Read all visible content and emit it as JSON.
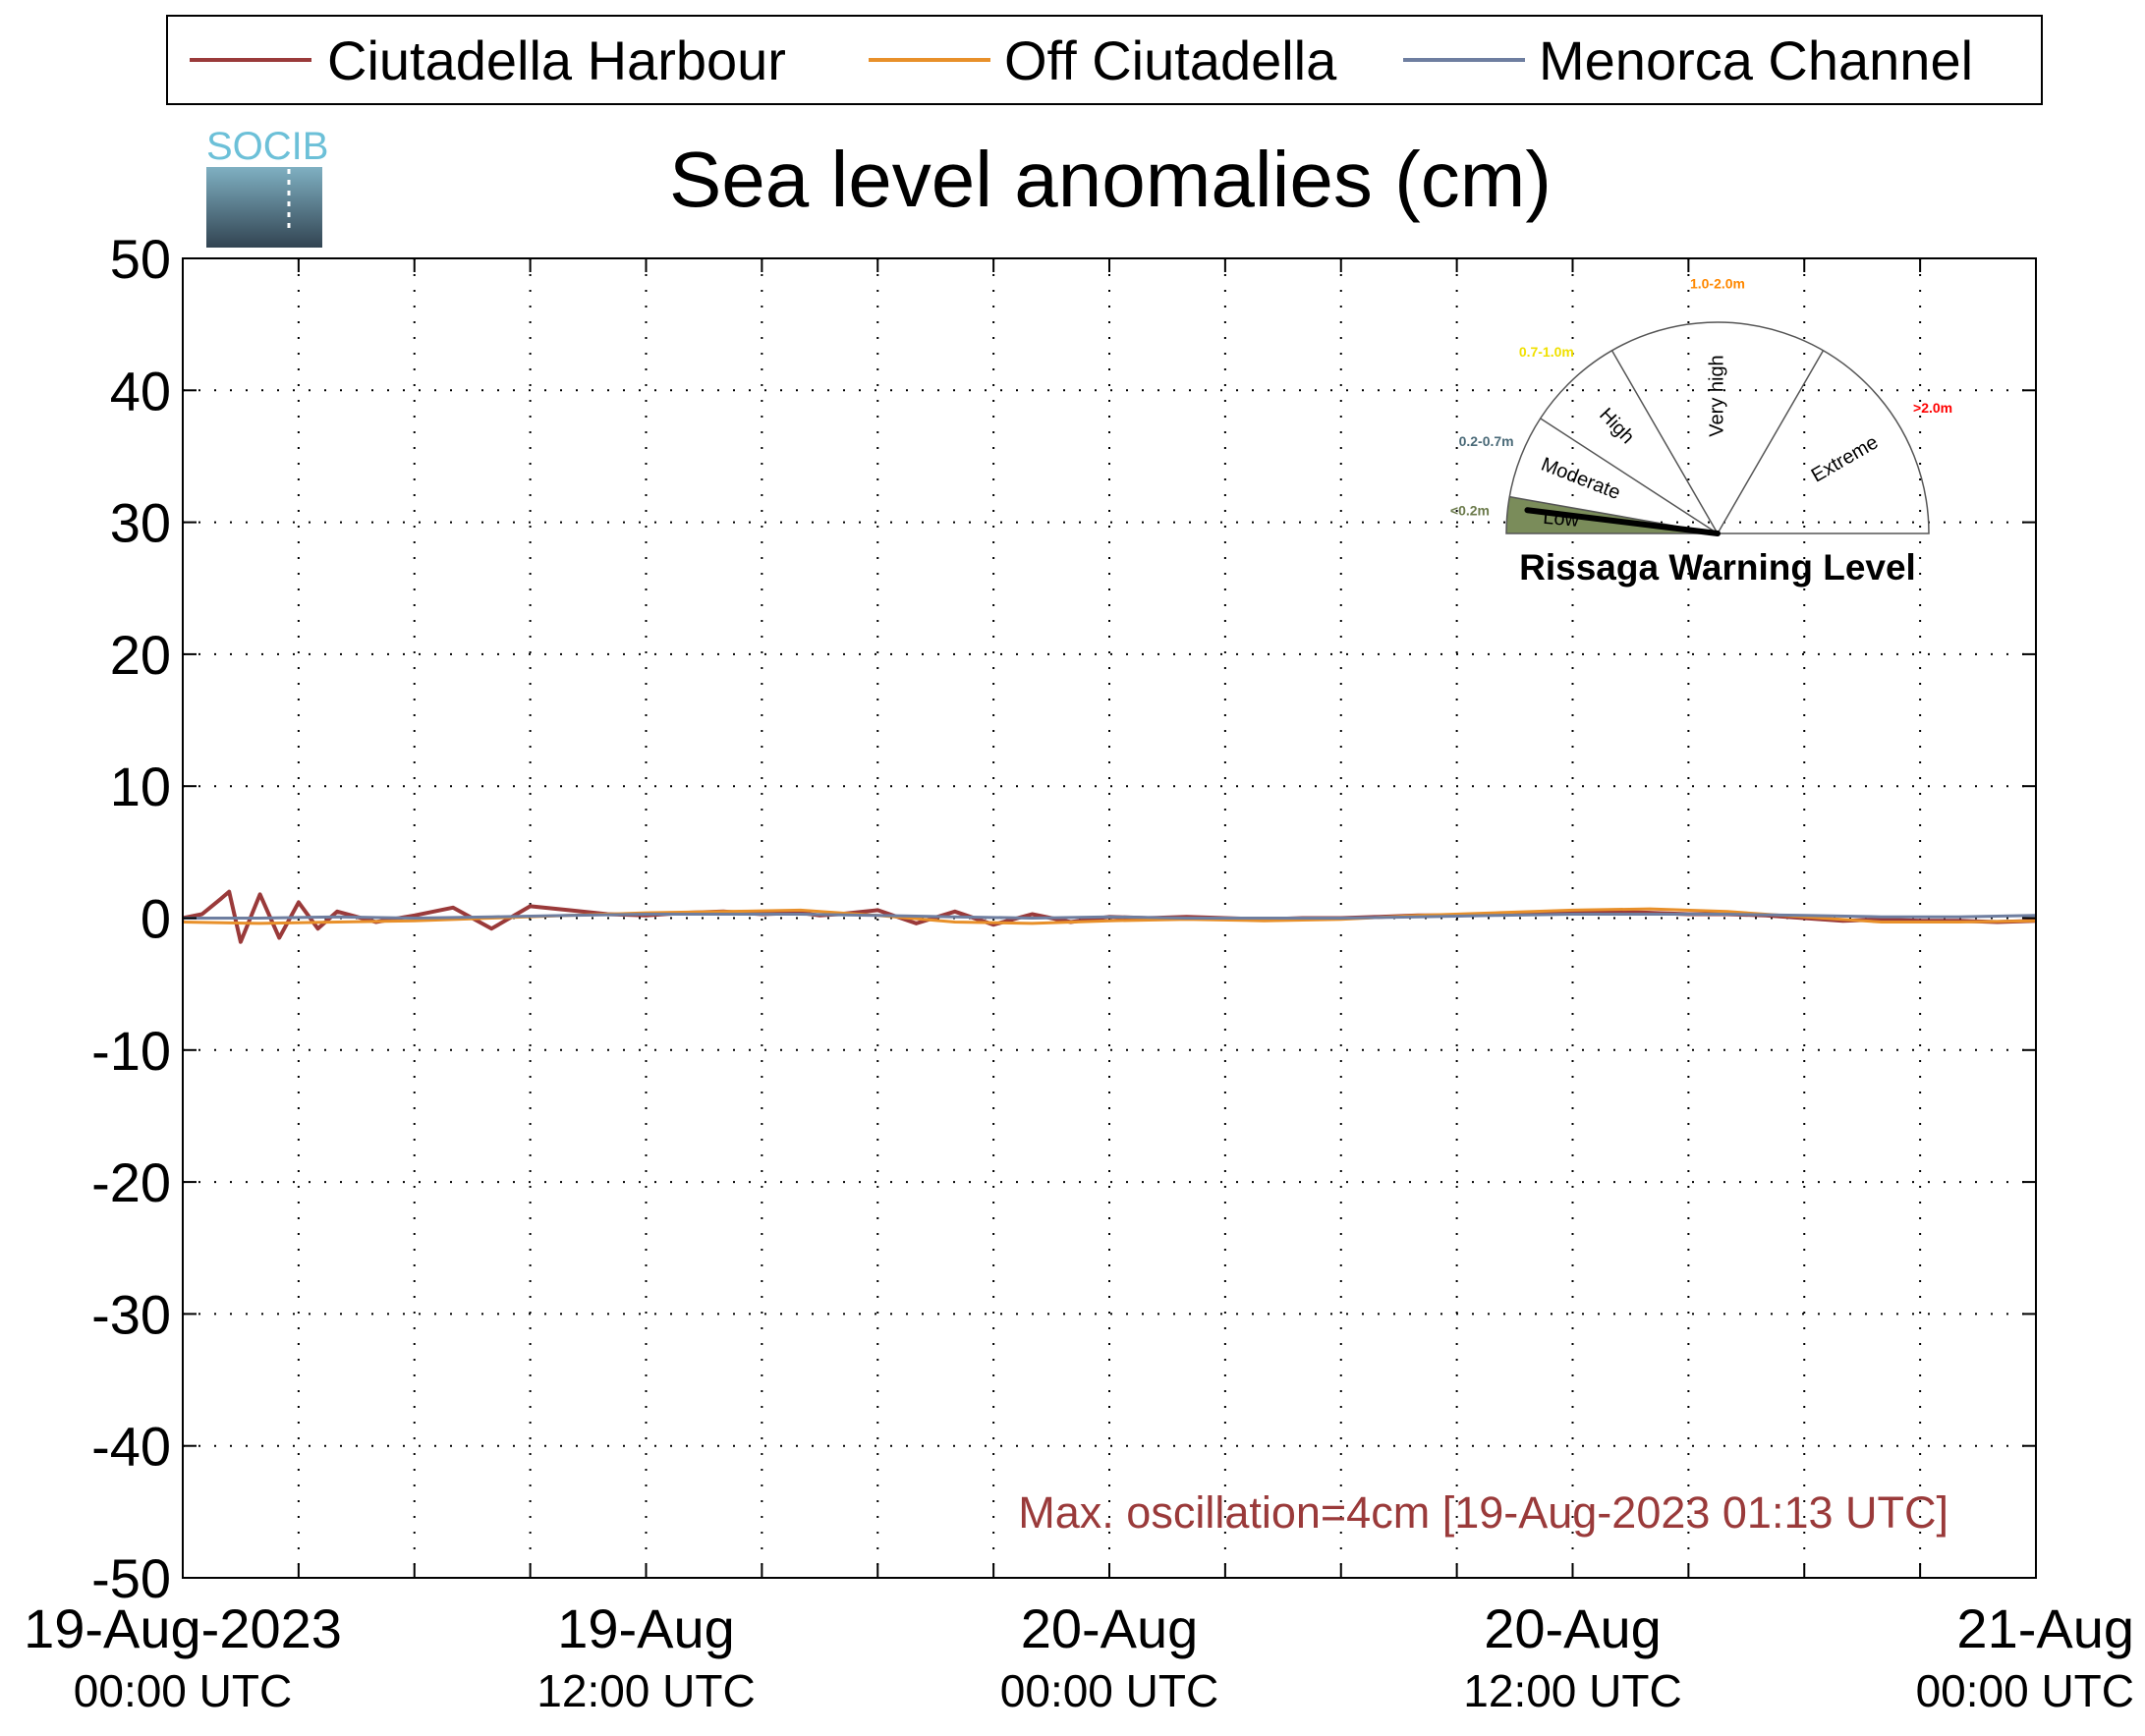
{
  "logo": {
    "text": "SOCIB"
  },
  "gauge": {
    "title": "Rissaga Warning Level",
    "levels": [
      {
        "name": "Low",
        "range": "<0.2m",
        "color": "#6b7a4b"
      },
      {
        "name": "Moderate",
        "range": "0.2-0.7m",
        "color": "#4a6a78"
      },
      {
        "name": "High",
        "range": "0.7-1.0m",
        "color": "#f0e000"
      },
      {
        "name": "Very high",
        "range": "1.0-2.0m",
        "color": "#ff8800"
      },
      {
        "name": "Extreme",
        "range": ">2.0m",
        "color": "#ff0000"
      }
    ],
    "active_level": "Low",
    "active_fill": "#7a8c5a"
  },
  "annotation": {
    "text": "Max. oscillation=4cm [19-Aug-2023 01:13 UTC]",
    "color": "#9a3a3a"
  },
  "chart_data": {
    "type": "line",
    "title": "Sea level anomalies (cm)",
    "xlabel": "",
    "ylabel": "",
    "ylim": [
      -50,
      50
    ],
    "yticks": [
      50,
      40,
      30,
      20,
      10,
      0,
      -10,
      -20,
      -30,
      -40,
      -50
    ],
    "xlim_hours": [
      0,
      48
    ],
    "xticks": [
      {
        "h": 0,
        "line1": "19-Aug-2023",
        "line2": "00:00 UTC"
      },
      {
        "h": 12,
        "line1": "19-Aug",
        "line2": "12:00 UTC"
      },
      {
        "h": 24,
        "line1": "20-Aug",
        "line2": "00:00 UTC"
      },
      {
        "h": 36,
        "line1": "20-Aug",
        "line2": "12:00 UTC"
      },
      {
        "h": 48,
        "line1": "21-Aug",
        "line2": "00:00 UTC"
      }
    ],
    "grid": true,
    "legend_position": "top",
    "series": [
      {
        "name": "Ciutadella Harbour",
        "color": "#9a3a3a",
        "x": [
          0,
          0.5,
          1.0,
          1.2,
          1.5,
          2.0,
          2.5,
          3.0,
          3.5,
          4.0,
          5.0,
          6.0,
          7.0,
          8.0,
          9.0,
          10.0,
          11.0,
          12.0,
          13.0,
          14.0,
          15.0,
          16.0,
          16.5,
          17.0,
          18.0,
          19.0,
          20.0,
          21.0,
          22.0,
          23.0,
          24.0,
          25.0,
          26.0,
          27.0,
          28.0,
          29.0,
          30.0,
          31.0,
          32.0,
          33.0,
          34.0,
          35.0,
          36.0,
          37.0,
          38.0,
          39.0,
          40.0,
          41.0,
          42.0,
          43.0,
          44.0,
          45.0,
          46.0,
          47.0,
          48.0
        ],
        "y": [
          0,
          0.3,
          1.5,
          2.0,
          -1.8,
          1.8,
          -1.5,
          1.2,
          -0.8,
          0.5,
          -0.3,
          0.2,
          0.8,
          -0.8,
          0.9,
          0.6,
          0.3,
          0.2,
          0.4,
          0.5,
          0.3,
          0.4,
          0.2,
          0.3,
          0.6,
          -0.4,
          0.5,
          -0.5,
          0.3,
          -0.3,
          0.1,
          0.0,
          0.1,
          0.0,
          -0.1,
          0.0,
          0.0,
          0.1,
          0.2,
          0.2,
          0.3,
          0.4,
          0.5,
          0.5,
          0.4,
          0.3,
          0.3,
          0.2,
          0.0,
          -0.2,
          -0.1,
          -0.2,
          -0.2,
          -0.3,
          -0.2
        ]
      },
      {
        "name": "Off Ciutadella",
        "color": "#e8902a",
        "x": [
          0,
          2,
          4,
          6,
          8,
          10,
          12,
          14,
          16,
          18,
          20,
          22,
          24,
          26,
          28,
          30,
          32,
          34,
          36,
          38,
          40,
          42,
          44,
          46,
          48
        ],
        "y": [
          -0.3,
          -0.4,
          -0.3,
          -0.2,
          0.0,
          0.2,
          0.4,
          0.5,
          0.6,
          0.2,
          -0.3,
          -0.4,
          -0.2,
          -0.1,
          -0.2,
          -0.1,
          0.2,
          0.4,
          0.6,
          0.7,
          0.5,
          0.1,
          -0.3,
          -0.3,
          -0.2
        ]
      },
      {
        "name": "Menorca Channel",
        "color": "#6e7ea0",
        "x": [
          0,
          2,
          4,
          6,
          8,
          10,
          12,
          14,
          16,
          18,
          20,
          22,
          24,
          26,
          28,
          30,
          32,
          34,
          36,
          38,
          40,
          42,
          44,
          46,
          48
        ],
        "y": [
          0.0,
          0.0,
          0.1,
          0.0,
          0.1,
          0.2,
          0.3,
          0.3,
          0.3,
          0.2,
          0.1,
          0.0,
          0.1,
          0.0,
          0.0,
          0.0,
          0.1,
          0.2,
          0.3,
          0.3,
          0.3,
          0.2,
          0.1,
          0.1,
          0.2
        ]
      }
    ]
  }
}
